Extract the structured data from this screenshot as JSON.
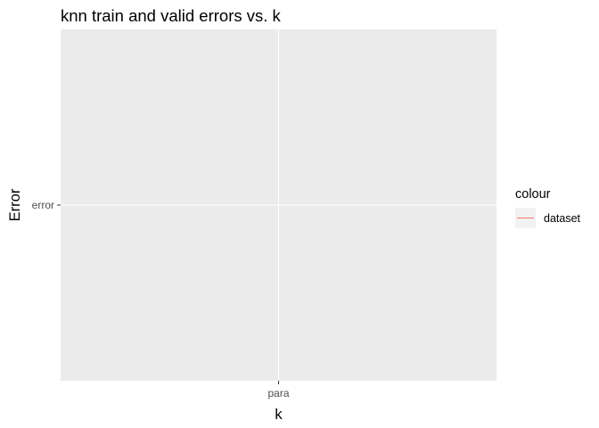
{
  "chart_data": {
    "type": "line",
    "title": "knn train and valid errors vs. k",
    "xlabel": "k",
    "ylabel": "Error",
    "x_categories": [
      "para"
    ],
    "y_categories": [
      "error"
    ],
    "series": [
      {
        "name": "dataset",
        "color": "#F8766D",
        "points": []
      }
    ],
    "grid": true,
    "legend": {
      "title": "colour",
      "placement": "right",
      "entries": [
        "dataset"
      ]
    },
    "panel_background": "#EBEBEB",
    "gridline_color": "#FFFFFF"
  }
}
